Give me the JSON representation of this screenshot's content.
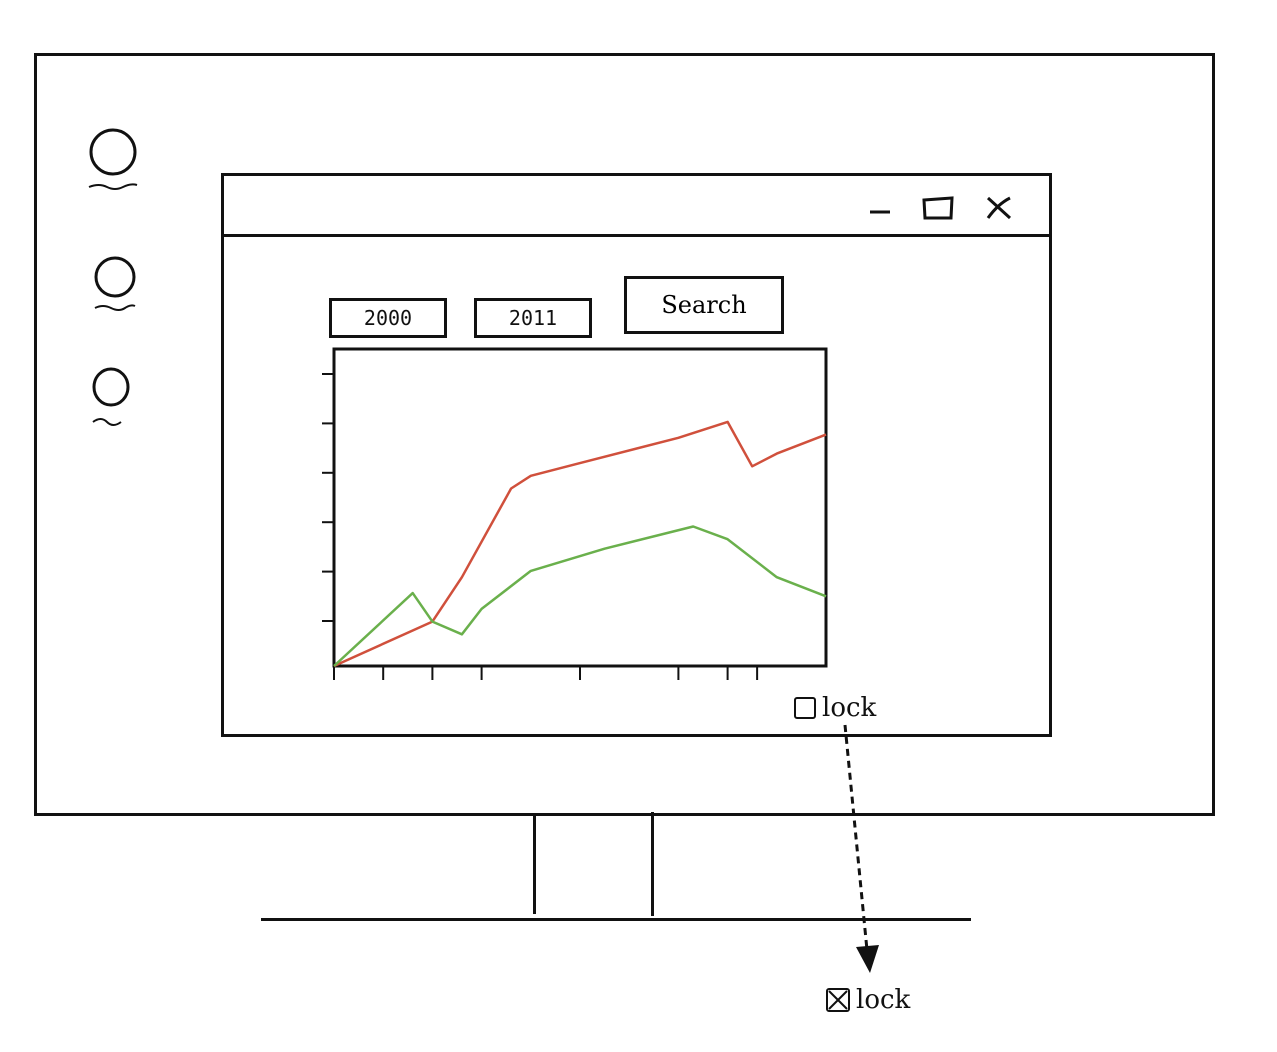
{
  "window": {
    "controls": {
      "minimize": "–",
      "maximize": "□",
      "close": "x"
    }
  },
  "filters": {
    "start_year": "2000",
    "end_year": "2011",
    "search_label": "Search"
  },
  "lock": {
    "label": "lock",
    "before_checked": false,
    "after_checked": true
  },
  "desktop": {
    "icons": [
      "circle-icon",
      "circle-icon",
      "circle-icon"
    ]
  },
  "colors": {
    "series_red": "#d0503c",
    "series_green": "#6ab04c",
    "ink": "#111111"
  },
  "chart_data": {
    "type": "line",
    "title": "",
    "xlabel": "",
    "ylabel": "",
    "xlim": [
      0,
      10
    ],
    "ylim": [
      0,
      10
    ],
    "grid": false,
    "legend": "none",
    "series": [
      {
        "color": "#d0503c",
        "x": [
          0,
          2,
          2.6,
          3.6,
          4.0,
          5.0,
          7.0,
          8.0,
          8.5,
          9.0,
          10.0
        ],
        "y": [
          0,
          1.4,
          2.8,
          5.6,
          6.0,
          6.4,
          7.2,
          7.7,
          6.3,
          6.7,
          7.3
        ]
      },
      {
        "color": "#6ab04c",
        "x": [
          0,
          1.6,
          2.0,
          2.6,
          3.0,
          4.0,
          5.5,
          7.3,
          8.0,
          9.0,
          10.0
        ],
        "y": [
          0,
          2.3,
          1.4,
          1.0,
          1.8,
          3.0,
          3.7,
          4.4,
          4.0,
          2.8,
          2.2
        ]
      }
    ],
    "y_ticks": 6,
    "x_ticks": [
      0,
      1,
      2,
      3,
      5,
      7,
      8,
      8.6
    ]
  }
}
